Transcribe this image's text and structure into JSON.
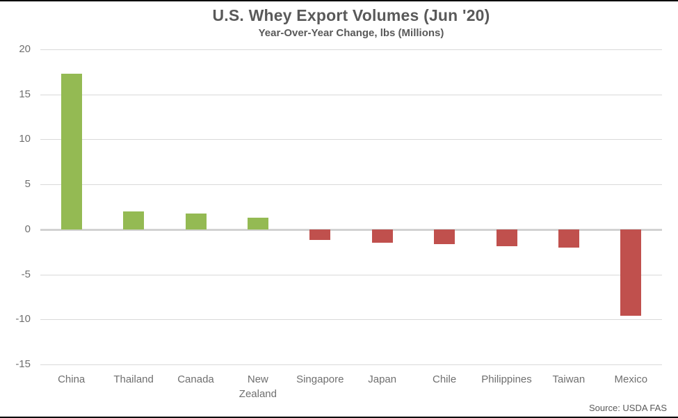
{
  "chart_data": {
    "type": "bar",
    "title": "U.S. Whey Export Volumes (Jun '20)",
    "subtitle": "Year-Over-Year Change, lbs (Millions)",
    "categories": [
      "China",
      "Thailand",
      "Canada",
      "New Zealand",
      "Singapore",
      "Japan",
      "Chile",
      "Philippines",
      "Taiwan",
      "Mexico"
    ],
    "values": [
      17.3,
      2.0,
      1.8,
      1.3,
      -1.2,
      -1.5,
      -1.6,
      -1.9,
      -2.0,
      -9.6
    ],
    "ylim": [
      -15,
      20
    ],
    "yticks": [
      20,
      15,
      10,
      5,
      0,
      -5,
      -10,
      -15
    ],
    "grid": true,
    "legend": "none",
    "positive_color": "#94BA53",
    "negative_color": "#C0504D",
    "gridline_color": "#D9D9D9"
  },
  "footer": {
    "source": "Source: USDA FAS"
  }
}
